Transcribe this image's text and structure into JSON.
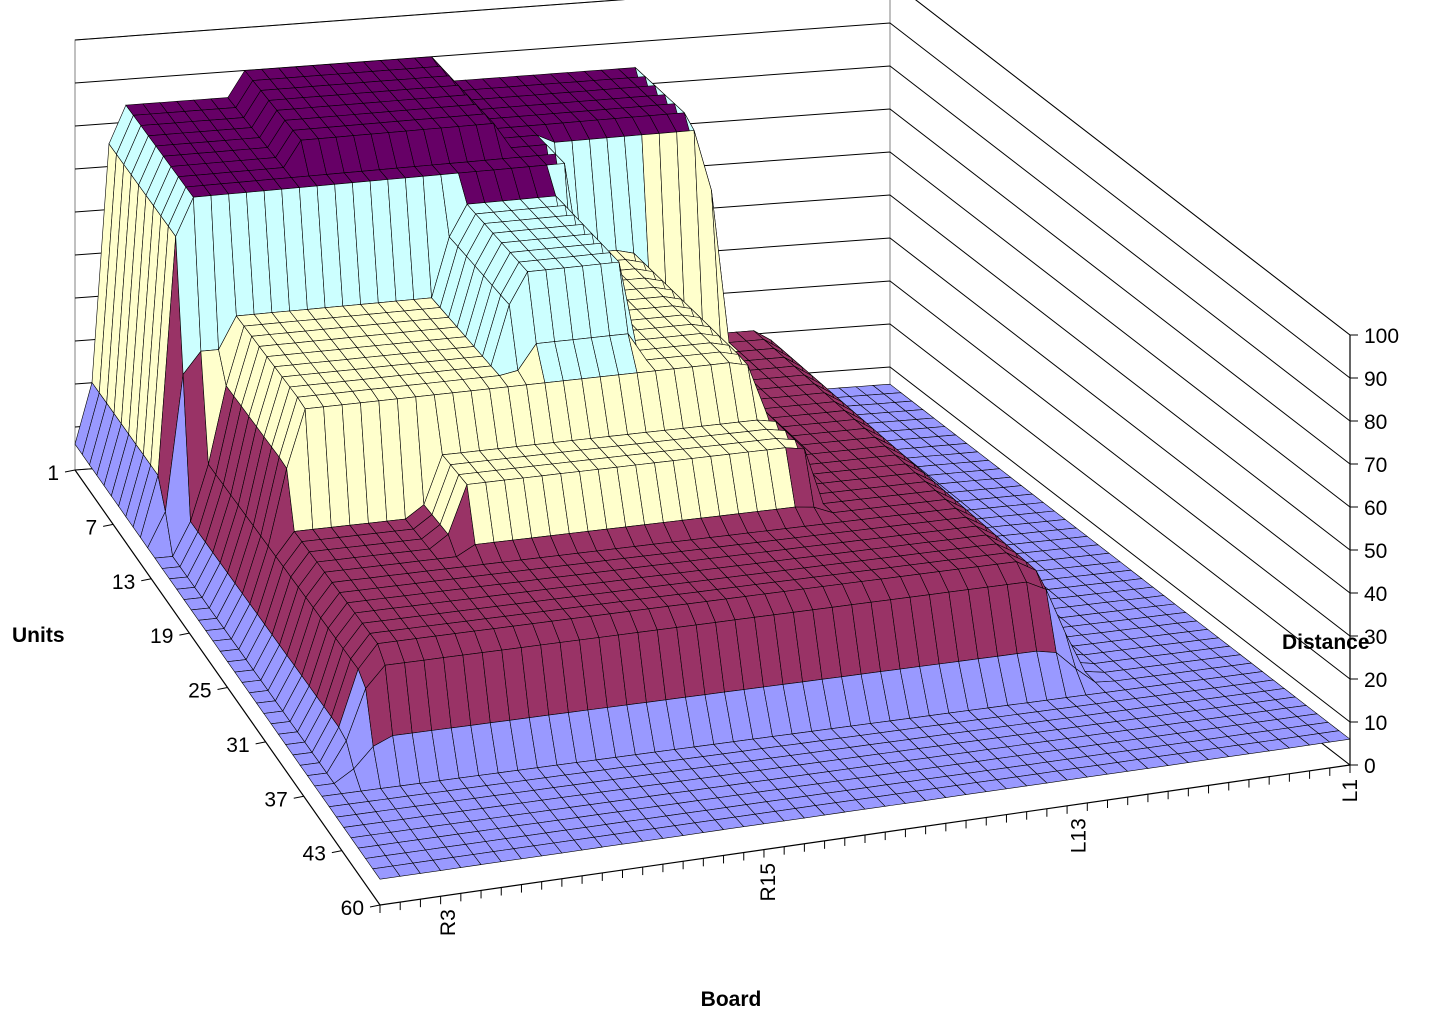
{
  "chart_data": {
    "type": "surface",
    "title": "",
    "xlabel": "Board",
    "ylabel": "Units",
    "zlabel": "Distance",
    "z_ticks": [
      "0",
      "10",
      "20",
      "30",
      "40",
      "50",
      "60",
      "70",
      "80",
      "90",
      "100"
    ],
    "zlim": [
      0,
      100
    ],
    "units_ticks": [
      "1",
      "7",
      "13",
      "19",
      "25",
      "31",
      "37",
      "43",
      "60"
    ],
    "board_ticks": [
      "R3",
      "R15",
      "L13",
      "L1"
    ],
    "bands": [
      {
        "range": [
          0,
          20
        ],
        "color": "#9999ff"
      },
      {
        "range": [
          20,
          40
        ],
        "color": "#993366"
      },
      {
        "range": [
          40,
          60
        ],
        "color": "#ffffcc"
      },
      {
        "range": [
          60,
          80
        ],
        "color": "#ccffff"
      },
      {
        "range": [
          80,
          100
        ],
        "color": "#660066"
      }
    ],
    "wall_grid": true,
    "legend": "none"
  }
}
